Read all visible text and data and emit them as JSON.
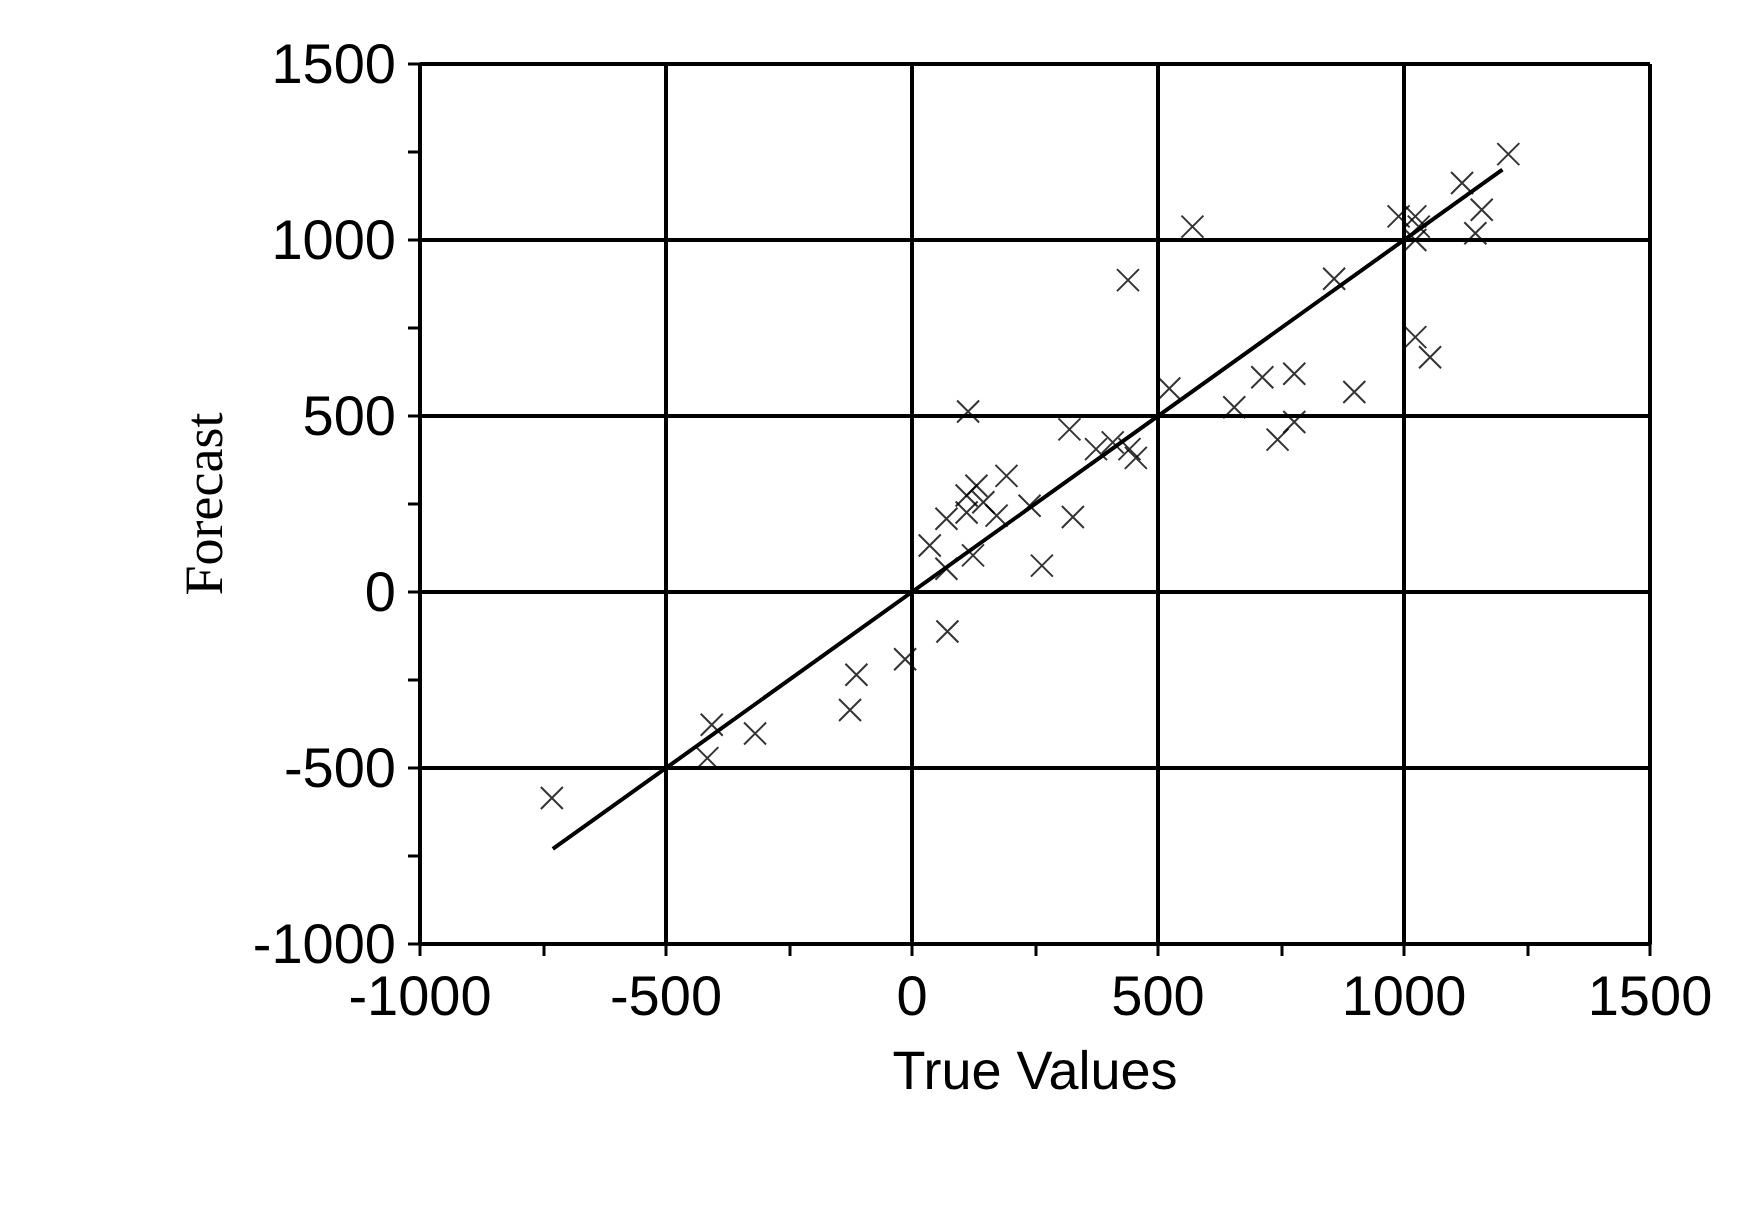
{
  "chart_data": {
    "type": "scatter",
    "xlabel": "True Values",
    "ylabel": "Forecast",
    "xlim": [
      -1000,
      1500
    ],
    "ylim": [
      -1000,
      1500
    ],
    "xticks": [
      -1000,
      {
        "value": -750,
        "label": null
      },
      -500,
      {
        "value": -250,
        "label": null
      },
      0,
      {
        "value": 250,
        "label": null
      },
      500,
      {
        "value": 750,
        "label": null
      },
      1000,
      {
        "value": 1250,
        "label": null
      },
      1500
    ],
    "yticks": [
      -1000,
      {
        "value": -750,
        "label": null
      },
      -500,
      {
        "value": -250,
        "label": null
      },
      0,
      {
        "value": 250,
        "label": null
      },
      500,
      {
        "value": 750,
        "label": null
      },
      1000,
      {
        "value": 1250,
        "label": null
      },
      1500
    ],
    "grid": true,
    "marker": "cross",
    "series": [
      {
        "color": "#000000",
        "x": [
          -732,
          -407,
          -416,
          -319,
          -113,
          -126,
          -14,
          72,
          36,
          70,
          124,
          70,
          111,
          172,
          111,
          131,
          145,
          192,
          239,
          264,
          327,
          320,
          374,
          408,
          442,
          455,
          114,
          523,
          570,
          439,
          655,
          712,
          777,
          777,
          743,
          899,
          858,
          989,
          1023,
          1023,
          1030,
          1145,
          1158,
          1118,
          1212,
          1023,
          1053
        ],
        "values": [
          -585,
          -377,
          -472,
          -402,
          -235,
          -335,
          -191,
          -112,
          132,
          66,
          104,
          208,
          226,
          217,
          274,
          302,
          255,
          330,
          245,
          75,
          213,
          462,
          406,
          425,
          406,
          381,
          513,
          578,
          1038,
          886,
          525,
          610,
          620,
          483,
          433,
          568,
          890,
          1067,
          1067,
          1000,
          1038,
          1019,
          1086,
          1162,
          1244,
          724,
          667
        ]
      },
      {
        "type": "line",
        "color": "#000000",
        "line_style": "solid",
        "marker": "none",
        "x": [
          -730,
          1200
        ],
        "values": [
          -730,
          1200
        ]
      }
    ]
  }
}
